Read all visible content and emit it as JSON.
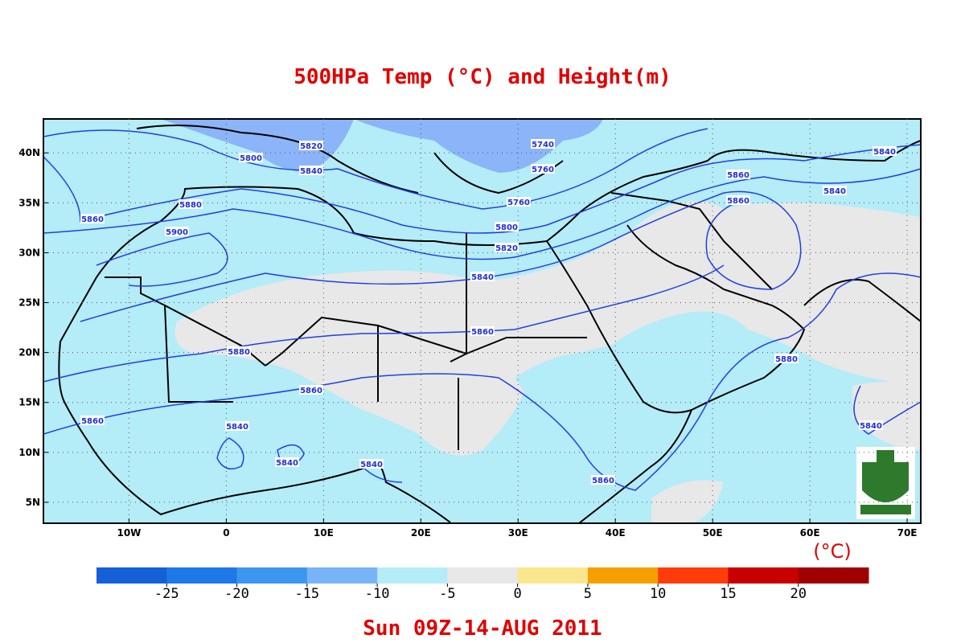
{
  "title": "500HPa Temp (°C) and Height(m)",
  "map": {
    "xlim": [
      -18.8,
      71.4
    ],
    "ylim": [
      2.9,
      43.4
    ],
    "xticks": [
      {
        "value": -10,
        "label": "10W"
      },
      0,
      {
        "value": 10,
        "label": "10E"
      },
      {
        "value": 20,
        "label": "20E"
      },
      {
        "value": 30,
        "label": "30E"
      },
      {
        "value": 40,
        "label": "40E"
      },
      {
        "value": 50,
        "label": "50E"
      },
      {
        "value": 60,
        "label": "60E"
      },
      {
        "value": 70,
        "label": "70E"
      }
    ],
    "yticks": [
      {
        "value": 5,
        "label": "5N"
      },
      {
        "value": 10,
        "label": "10N"
      },
      {
        "value": 15,
        "label": "15N"
      },
      {
        "value": 20,
        "label": "20N"
      },
      {
        "value": 25,
        "label": "25N"
      },
      {
        "value": 30,
        "label": "30N"
      },
      {
        "value": 35,
        "label": "35N"
      },
      {
        "value": 40,
        "label": "40N"
      }
    ],
    "grid": true
  },
  "contour_labels": [
    5800,
    5820,
    5840,
    5740,
    5760,
    5760,
    5800,
    5820,
    5840,
    5860,
    5860,
    5880,
    5900,
    5880,
    5860,
    5840,
    5840,
    5840,
    5860,
    5860,
    5860,
    5860,
    5840,
    5840,
    5880,
    5840
  ],
  "colorbar": {
    "unit": "(°C)",
    "ticks": [
      -25,
      -20,
      -15,
      -10,
      -5,
      0,
      5,
      10,
      15,
      20
    ],
    "colors": [
      "#1560d8",
      "#1e78e8",
      "#3c96f0",
      "#78b4f8",
      "#b4ecf8",
      "#e8e8e8",
      "#fae68c",
      "#f5a000",
      "#ff3c0a",
      "#c80000",
      "#a00000"
    ]
  },
  "date": "Sun 09Z-14-AUG 2011"
}
